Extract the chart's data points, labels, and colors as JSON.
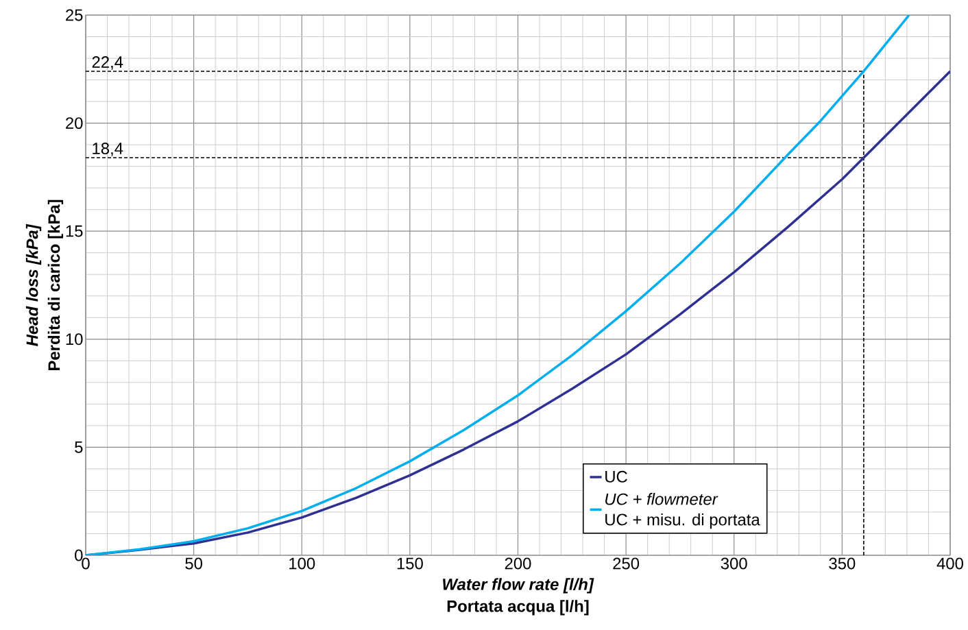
{
  "chart_data": {
    "type": "line",
    "xlabel": "*Water flow rate [l/h]*\nPortata acqua [l/h]",
    "ylabel": "*Head loss [kPa]*\nPerdita di carico [kPa]",
    "x": [
      0,
      25,
      50,
      75,
      100,
      125,
      150,
      175,
      200,
      225,
      250,
      275,
      300,
      325,
      350,
      360,
      375,
      400
    ],
    "series": [
      {
        "name": "UC",
        "color": "#2e3192",
        "values": [
          0,
          0.25,
          0.55,
          1.05,
          1.75,
          2.65,
          3.7,
          4.9,
          6.2,
          7.7,
          9.3,
          11.15,
          13.1,
          15.2,
          17.4,
          18.4,
          19.9,
          22.4
        ]
      },
      {
        "name": "*UC + flowmeter*\nUC + misu. di portata",
        "color": "#00aeef",
        "x": [
          0,
          25,
          50,
          75,
          100,
          125,
          150,
          175,
          200,
          225,
          250,
          275,
          300,
          325,
          340,
          360,
          381
        ],
        "values": [
          0,
          0.28,
          0.65,
          1.25,
          2.05,
          3.1,
          4.35,
          5.8,
          7.4,
          9.25,
          11.3,
          13.5,
          15.9,
          18.55,
          20.1,
          22.4,
          25
        ]
      }
    ],
    "xlim": [
      0,
      400
    ],
    "ylim": [
      0,
      25
    ],
    "xticks": [
      0,
      50,
      100,
      150,
      200,
      250,
      300,
      350,
      400
    ],
    "yticks": [
      0,
      5,
      10,
      15,
      20,
      25
    ],
    "ref_lines": [
      {
        "axis": "y",
        "value": 22.4,
        "label": "22,4",
        "color": "#000000",
        "line_style": "dashed"
      },
      {
        "axis": "y",
        "value": 18.4,
        "label": "18,4",
        "color": "#000000",
        "line_style": "dashed"
      },
      {
        "axis": "x",
        "value": 360,
        "color": "#000000",
        "line_style": "dashed"
      }
    ],
    "grid": true,
    "legend": "bottom right",
    "marker": "none",
    "line_style": "solid"
  }
}
